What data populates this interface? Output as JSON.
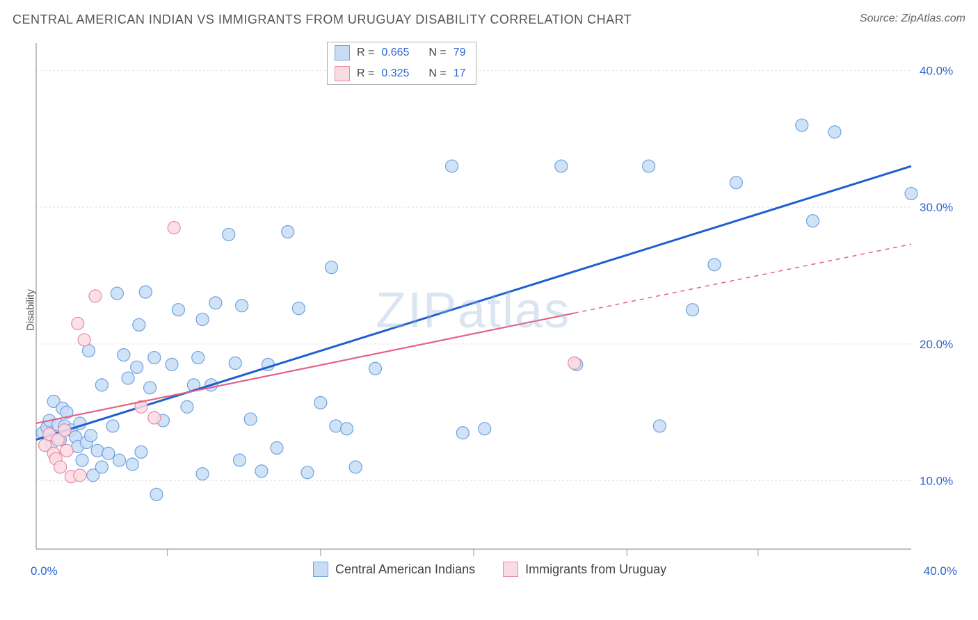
{
  "header": {
    "title": "CENTRAL AMERICAN INDIAN VS IMMIGRANTS FROM URUGUAY DISABILITY CORRELATION CHART",
    "source": "Source: ZipAtlas.com"
  },
  "ylabel": "Disability",
  "watermark": "ZIPatlas",
  "chart": {
    "type": "scatter",
    "xlim": [
      0,
      40
    ],
    "ylim": [
      5,
      42
    ],
    "background_color": "#ffffff",
    "grid_color": "#e2e2e2",
    "grid_dash": "3,3",
    "y_gridlines": [
      10,
      20,
      30,
      40
    ],
    "y_ticklabels": [
      "10.0%",
      "20.0%",
      "30.0%",
      "40.0%"
    ],
    "x_minor_ticks": [
      6,
      13,
      20,
      27,
      33
    ],
    "x_ticklabels_left": "0.0%",
    "x_ticklabels_right": "40.0%",
    "axis_color": "#999999",
    "marker_radius": 9,
    "marker_stroke_width": 1.2,
    "series": [
      {
        "name": "Central American Indians",
        "fill": "#c8ddf5",
        "stroke": "#6ea2e0",
        "points": [
          [
            0.3,
            13.5
          ],
          [
            0.5,
            13.9
          ],
          [
            0.6,
            14.4
          ],
          [
            0.7,
            12.7
          ],
          [
            0.8,
            15.8
          ],
          [
            0.9,
            13.2
          ],
          [
            1.0,
            14.1
          ],
          [
            1.1,
            13.0
          ],
          [
            1.2,
            15.3
          ],
          [
            1.3,
            14.0
          ],
          [
            1.4,
            15.0
          ],
          [
            1.6,
            13.7
          ],
          [
            1.8,
            13.2
          ],
          [
            1.9,
            12.5
          ],
          [
            2.0,
            14.2
          ],
          [
            2.1,
            11.5
          ],
          [
            2.3,
            12.8
          ],
          [
            2.5,
            13.3
          ],
          [
            2.6,
            10.4
          ],
          [
            2.8,
            12.2
          ],
          [
            2.4,
            19.5
          ],
          [
            3.0,
            11.0
          ],
          [
            3.0,
            17.0
          ],
          [
            3.3,
            12.0
          ],
          [
            3.5,
            14.0
          ],
          [
            3.7,
            23.7
          ],
          [
            3.8,
            11.5
          ],
          [
            4.0,
            19.2
          ],
          [
            4.2,
            17.5
          ],
          [
            4.4,
            11.2
          ],
          [
            4.6,
            18.3
          ],
          [
            4.7,
            21.4
          ],
          [
            4.8,
            12.1
          ],
          [
            5.0,
            23.8
          ],
          [
            5.2,
            16.8
          ],
          [
            5.4,
            19.0
          ],
          [
            5.5,
            9.0
          ],
          [
            5.8,
            14.4
          ],
          [
            6.2,
            18.5
          ],
          [
            6.5,
            22.5
          ],
          [
            6.9,
            15.4
          ],
          [
            7.2,
            17.0
          ],
          [
            7.4,
            19.0
          ],
          [
            7.6,
            21.8
          ],
          [
            7.6,
            10.5
          ],
          [
            8.0,
            17.0
          ],
          [
            8.2,
            23.0
          ],
          [
            8.8,
            28.0
          ],
          [
            9.1,
            18.6
          ],
          [
            9.3,
            11.5
          ],
          [
            9.4,
            22.8
          ],
          [
            9.8,
            14.5
          ],
          [
            10.3,
            10.7
          ],
          [
            10.6,
            18.5
          ],
          [
            11.0,
            12.4
          ],
          [
            11.5,
            28.2
          ],
          [
            12.0,
            22.6
          ],
          [
            12.4,
            10.6
          ],
          [
            13.0,
            15.7
          ],
          [
            13.5,
            25.6
          ],
          [
            13.7,
            14.0
          ],
          [
            14.2,
            13.8
          ],
          [
            14.6,
            11.0
          ],
          [
            15.5,
            18.2
          ],
          [
            16.5,
            40.8
          ],
          [
            19.0,
            33.0
          ],
          [
            19.5,
            13.5
          ],
          [
            20.5,
            13.8
          ],
          [
            24.0,
            33.0
          ],
          [
            24.7,
            18.5
          ],
          [
            28.0,
            33.0
          ],
          [
            28.5,
            14.0
          ],
          [
            30.0,
            22.5
          ],
          [
            31.0,
            25.8
          ],
          [
            32.0,
            31.8
          ],
          [
            35.0,
            36.0
          ],
          [
            35.5,
            29.0
          ],
          [
            36.5,
            35.5
          ],
          [
            40.0,
            31.0
          ]
        ],
        "trend": {
          "x1": 0,
          "y1": 13.0,
          "x2": 40,
          "y2": 33.0,
          "color": "#1f5fd0",
          "width": 3,
          "dash": null
        }
      },
      {
        "name": "Immigrants from Uruguay",
        "fill": "#fbdbe3",
        "stroke": "#e88aa3",
        "points": [
          [
            0.4,
            12.6
          ],
          [
            0.6,
            13.4
          ],
          [
            0.8,
            12.0
          ],
          [
            0.9,
            11.6
          ],
          [
            1.0,
            13.0
          ],
          [
            1.1,
            11.0
          ],
          [
            1.3,
            13.7
          ],
          [
            1.4,
            12.2
          ],
          [
            1.6,
            10.3
          ],
          [
            2.0,
            10.4
          ],
          [
            2.2,
            20.3
          ],
          [
            1.9,
            21.5
          ],
          [
            2.7,
            23.5
          ],
          [
            4.8,
            15.4
          ],
          [
            5.4,
            14.6
          ],
          [
            6.3,
            28.5
          ],
          [
            24.6,
            18.6
          ]
        ],
        "trend": {
          "x1": 0,
          "y1": 14.2,
          "x2": 40,
          "y2": 27.3,
          "color": "#e36284",
          "width": 2.2,
          "solid_until_x": 24.6,
          "dash_after": "6,6"
        }
      }
    ]
  },
  "stats_legend": {
    "rows": [
      {
        "swatch_fill": "#c8ddf5",
        "swatch_stroke": "#6ea2e0",
        "r": "0.665",
        "n": "79"
      },
      {
        "swatch_fill": "#fbdbe3",
        "swatch_stroke": "#e88aa3",
        "r": "0.325",
        "n": "17"
      }
    ],
    "labels": {
      "r": "R =",
      "n": "N ="
    }
  },
  "bottom_legend": [
    {
      "swatch_fill": "#c8ddf5",
      "swatch_stroke": "#6ea2e0",
      "label": "Central American Indians"
    },
    {
      "swatch_fill": "#fbdbe3",
      "swatch_stroke": "#e88aa3",
      "label": "Immigrants from Uruguay"
    }
  ]
}
